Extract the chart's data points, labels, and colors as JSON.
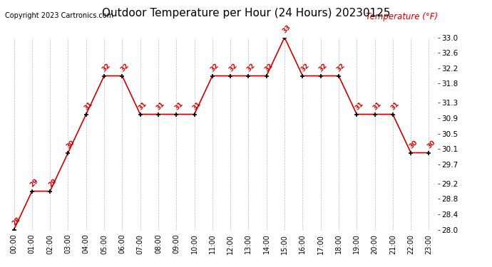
{
  "title": "Outdoor Temperature per Hour (24 Hours) 20230125",
  "copyright_text": "Copyright 2023 Cartronics.com",
  "legend_label": "Temperature (°F)",
  "hours": [
    "00:00",
    "01:00",
    "02:00",
    "03:00",
    "04:00",
    "05:00",
    "06:00",
    "07:00",
    "08:00",
    "09:00",
    "10:00",
    "11:00",
    "12:00",
    "13:00",
    "14:00",
    "15:00",
    "16:00",
    "17:00",
    "18:00",
    "19:00",
    "20:00",
    "21:00",
    "22:00",
    "23:00"
  ],
  "temperatures": [
    28,
    29,
    29,
    30,
    31,
    32,
    32,
    31,
    31,
    31,
    31,
    32,
    32,
    32,
    32,
    33,
    32,
    32,
    32,
    31,
    31,
    31,
    30,
    30
  ],
  "ylim": [
    28.0,
    33.0
  ],
  "yticks": [
    28.0,
    28.4,
    28.8,
    29.2,
    29.7,
    30.1,
    30.5,
    30.9,
    31.3,
    31.8,
    32.2,
    32.6,
    33.0
  ],
  "line_color": "#cc0000",
  "marker_color": "#000000",
  "grid_color": "#bbbbbb",
  "title_color": "#000000",
  "copyright_color": "#000000",
  "legend_color": "#cc0000",
  "annotation_color": "#cc0000",
  "bg_color": "#ffffff",
  "title_fontsize": 11,
  "annotation_fontsize": 6.5,
  "copyright_fontsize": 7,
  "legend_fontsize": 8.5,
  "tick_fontsize": 7,
  "ytick_fontsize": 7.5
}
